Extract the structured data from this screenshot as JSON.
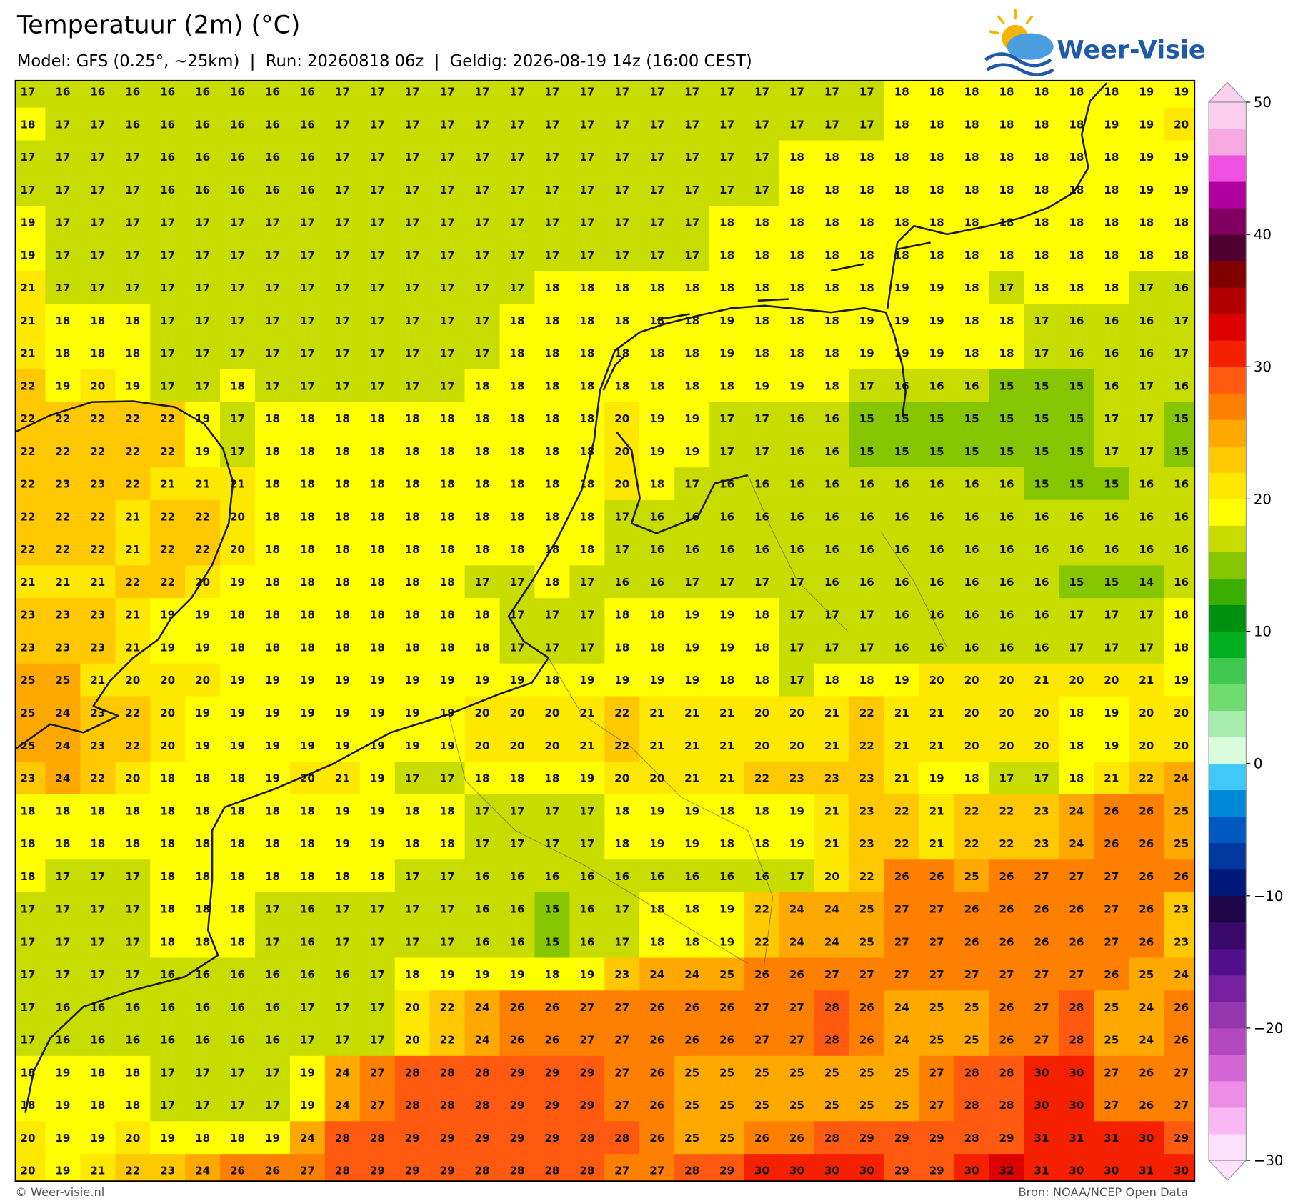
{
  "title": "Temperatuur (2m) (°C)",
  "subtitle": "Model: GFS (0.25°, ~25km)  |  Run: 20260818 06z  |  Geldig: 2026-08-19 14z (16:00 CEST)",
  "logo": "Weer-Visie",
  "footer_left": "© Weer-visie.nl",
  "footer_right": "Bron: NOAA/NCEP Open Data",
  "chart_data": {
    "type": "heatmap",
    "values": [
      [
        17,
        16,
        16,
        16,
        16,
        16,
        16,
        16,
        16,
        17,
        17,
        17,
        17,
        17,
        17,
        17,
        17,
        17,
        17,
        17,
        17,
        17,
        17,
        17,
        17,
        18,
        18,
        18,
        18,
        18,
        18,
        18,
        19,
        19
      ],
      [
        18,
        17,
        17,
        16,
        16,
        16,
        16,
        16,
        16,
        17,
        17,
        17,
        17,
        17,
        17,
        17,
        17,
        17,
        17,
        17,
        17,
        17,
        17,
        17,
        17,
        18,
        18,
        18,
        18,
        18,
        18,
        19,
        19,
        20
      ],
      [
        17,
        17,
        17,
        17,
        16,
        16,
        16,
        16,
        16,
        17,
        17,
        17,
        17,
        17,
        17,
        17,
        17,
        17,
        17,
        17,
        17,
        17,
        18,
        18,
        18,
        18,
        18,
        18,
        18,
        18,
        18,
        18,
        19,
        19
      ],
      [
        17,
        17,
        17,
        17,
        16,
        16,
        16,
        16,
        16,
        17,
        17,
        17,
        17,
        17,
        17,
        17,
        17,
        17,
        17,
        17,
        17,
        17,
        18,
        18,
        18,
        18,
        18,
        18,
        18,
        18,
        18,
        18,
        19,
        19
      ],
      [
        19,
        17,
        17,
        17,
        17,
        17,
        17,
        17,
        17,
        17,
        17,
        17,
        17,
        17,
        17,
        17,
        17,
        17,
        17,
        17,
        18,
        18,
        18,
        18,
        18,
        18,
        18,
        18,
        18,
        18,
        18,
        18,
        18,
        18
      ],
      [
        19,
        17,
        17,
        17,
        17,
        17,
        17,
        17,
        17,
        17,
        17,
        17,
        17,
        17,
        17,
        17,
        17,
        17,
        17,
        17,
        18,
        18,
        18,
        18,
        18,
        18,
        18,
        18,
        18,
        18,
        18,
        18,
        18,
        18
      ],
      [
        21,
        17,
        17,
        17,
        17,
        17,
        17,
        17,
        17,
        17,
        17,
        17,
        17,
        17,
        17,
        18,
        18,
        18,
        18,
        18,
        18,
        18,
        18,
        18,
        18,
        19,
        19,
        18,
        17,
        18,
        18,
        18,
        17,
        16
      ],
      [
        21,
        18,
        18,
        18,
        17,
        17,
        17,
        17,
        17,
        17,
        17,
        17,
        17,
        17,
        18,
        18,
        18,
        18,
        18,
        18,
        19,
        18,
        18,
        18,
        19,
        19,
        19,
        18,
        18,
        17,
        16,
        16,
        16,
        17
      ],
      [
        21,
        18,
        18,
        18,
        17,
        17,
        17,
        17,
        17,
        17,
        17,
        17,
        17,
        17,
        18,
        18,
        18,
        18,
        18,
        18,
        19,
        18,
        18,
        18,
        19,
        19,
        19,
        18,
        18,
        17,
        16,
        16,
        16,
        17
      ],
      [
        22,
        19,
        20,
        19,
        17,
        17,
        18,
        17,
        17,
        17,
        17,
        17,
        17,
        18,
        18,
        18,
        18,
        18,
        18,
        18,
        18,
        19,
        19,
        18,
        17,
        16,
        16,
        16,
        15,
        15,
        15,
        16,
        17,
        16
      ],
      [
        22,
        22,
        22,
        22,
        22,
        19,
        17,
        18,
        18,
        18,
        18,
        18,
        18,
        18,
        18,
        18,
        18,
        20,
        19,
        19,
        17,
        17,
        16,
        16,
        15,
        15,
        15,
        15,
        15,
        15,
        15,
        17,
        17,
        15
      ],
      [
        22,
        22,
        22,
        22,
        22,
        19,
        17,
        18,
        18,
        18,
        18,
        18,
        18,
        18,
        18,
        18,
        18,
        20,
        19,
        19,
        17,
        17,
        16,
        16,
        15,
        15,
        15,
        15,
        15,
        15,
        15,
        17,
        17,
        15
      ],
      [
        22,
        23,
        23,
        22,
        21,
        21,
        21,
        18,
        18,
        18,
        18,
        18,
        18,
        18,
        18,
        18,
        18,
        20,
        18,
        17,
        16,
        16,
        16,
        16,
        16,
        16,
        16,
        16,
        16,
        15,
        15,
        15,
        16,
        16
      ],
      [
        22,
        22,
        22,
        21,
        22,
        22,
        20,
        18,
        18,
        18,
        18,
        18,
        18,
        18,
        18,
        18,
        18,
        17,
        16,
        16,
        16,
        16,
        16,
        16,
        16,
        16,
        16,
        16,
        16,
        16,
        16,
        16,
        16,
        16
      ],
      [
        22,
        22,
        22,
        21,
        22,
        22,
        20,
        18,
        18,
        18,
        18,
        18,
        18,
        18,
        18,
        18,
        18,
        17,
        16,
        16,
        16,
        16,
        16,
        16,
        16,
        16,
        16,
        16,
        16,
        16,
        16,
        16,
        16,
        16
      ],
      [
        21,
        21,
        21,
        22,
        22,
        20,
        19,
        18,
        18,
        18,
        18,
        18,
        18,
        17,
        17,
        18,
        17,
        16,
        16,
        17,
        17,
        17,
        17,
        16,
        16,
        16,
        16,
        16,
        16,
        16,
        15,
        15,
        14,
        16
      ],
      [
        23,
        23,
        23,
        21,
        19,
        19,
        18,
        18,
        18,
        18,
        18,
        18,
        18,
        18,
        17,
        17,
        17,
        18,
        18,
        19,
        19,
        18,
        17,
        17,
        17,
        16,
        16,
        16,
        16,
        16,
        17,
        17,
        17,
        18
      ],
      [
        23,
        23,
        23,
        21,
        19,
        19,
        18,
        18,
        18,
        18,
        18,
        18,
        18,
        18,
        17,
        17,
        17,
        18,
        18,
        19,
        19,
        18,
        17,
        17,
        17,
        16,
        16,
        16,
        16,
        16,
        17,
        17,
        17,
        18
      ],
      [
        25,
        25,
        21,
        20,
        20,
        20,
        19,
        19,
        19,
        19,
        19,
        19,
        19,
        19,
        19,
        18,
        19,
        19,
        19,
        19,
        18,
        18,
        17,
        18,
        18,
        19,
        20,
        20,
        20,
        21,
        20,
        20,
        21,
        19
      ],
      [
        25,
        24,
        23,
        22,
        20,
        19,
        19,
        19,
        19,
        19,
        19,
        19,
        19,
        20,
        20,
        20,
        21,
        22,
        21,
        21,
        21,
        20,
        20,
        21,
        22,
        21,
        21,
        20,
        20,
        20,
        18,
        19,
        20,
        20
      ],
      [
        25,
        24,
        23,
        22,
        20,
        19,
        19,
        19,
        19,
        19,
        19,
        19,
        19,
        20,
        20,
        20,
        21,
        22,
        21,
        21,
        21,
        20,
        20,
        21,
        22,
        21,
        21,
        20,
        20,
        20,
        18,
        19,
        20,
        20
      ],
      [
        23,
        24,
        22,
        20,
        18,
        18,
        18,
        19,
        20,
        21,
        19,
        17,
        17,
        18,
        18,
        18,
        19,
        20,
        20,
        21,
        21,
        22,
        23,
        23,
        23,
        21,
        19,
        18,
        17,
        17,
        18,
        21,
        22,
        24
      ],
      [
        18,
        18,
        18,
        18,
        18,
        18,
        18,
        18,
        18,
        19,
        19,
        18,
        18,
        17,
        17,
        17,
        17,
        18,
        19,
        19,
        18,
        18,
        19,
        21,
        23,
        22,
        21,
        22,
        22,
        23,
        24,
        26,
        26,
        25
      ],
      [
        18,
        18,
        18,
        18,
        18,
        18,
        18,
        18,
        18,
        19,
        19,
        18,
        18,
        17,
        17,
        17,
        17,
        18,
        19,
        19,
        18,
        18,
        19,
        21,
        23,
        22,
        21,
        22,
        22,
        23,
        24,
        26,
        26,
        25
      ],
      [
        18,
        17,
        17,
        17,
        18,
        18,
        18,
        18,
        18,
        18,
        18,
        17,
        17,
        16,
        16,
        16,
        16,
        16,
        16,
        16,
        16,
        16,
        17,
        20,
        22,
        26,
        26,
        25,
        26,
        27,
        27,
        27,
        26,
        26
      ],
      [
        17,
        17,
        17,
        17,
        18,
        18,
        18,
        17,
        16,
        17,
        17,
        17,
        17,
        16,
        16,
        15,
        16,
        17,
        18,
        18,
        19,
        22,
        24,
        24,
        25,
        27,
        27,
        26,
        26,
        26,
        26,
        27,
        26,
        23
      ],
      [
        17,
        17,
        17,
        17,
        18,
        18,
        18,
        17,
        16,
        17,
        17,
        17,
        17,
        16,
        16,
        15,
        16,
        17,
        18,
        18,
        19,
        22,
        24,
        24,
        25,
        27,
        27,
        26,
        26,
        26,
        26,
        27,
        26,
        23
      ],
      [
        17,
        17,
        17,
        17,
        16,
        16,
        16,
        16,
        16,
        16,
        17,
        18,
        19,
        19,
        19,
        18,
        19,
        23,
        24,
        24,
        25,
        26,
        26,
        27,
        27,
        27,
        27,
        27,
        27,
        27,
        27,
        26,
        25,
        24
      ],
      [
        17,
        16,
        16,
        16,
        16,
        16,
        16,
        16,
        17,
        17,
        17,
        20,
        22,
        24,
        26,
        26,
        27,
        27,
        26,
        26,
        26,
        27,
        27,
        28,
        26,
        24,
        25,
        25,
        26,
        27,
        28,
        25,
        24,
        26
      ],
      [
        17,
        16,
        16,
        16,
        16,
        16,
        16,
        16,
        17,
        17,
        17,
        20,
        22,
        24,
        26,
        26,
        27,
        27,
        26,
        26,
        26,
        27,
        27,
        28,
        26,
        24,
        25,
        25,
        26,
        27,
        28,
        25,
        24,
        26
      ],
      [
        18,
        19,
        18,
        18,
        17,
        17,
        17,
        17,
        19,
        24,
        27,
        28,
        28,
        28,
        29,
        29,
        29,
        27,
        26,
        25,
        25,
        25,
        25,
        25,
        25,
        25,
        27,
        28,
        28,
        30,
        30,
        27,
        26,
        27
      ],
      [
        18,
        19,
        18,
        18,
        17,
        17,
        17,
        17,
        19,
        24,
        27,
        28,
        28,
        28,
        29,
        29,
        29,
        27,
        26,
        25,
        25,
        25,
        25,
        25,
        25,
        25,
        27,
        28,
        28,
        30,
        30,
        27,
        26,
        27
      ],
      [
        20,
        19,
        19,
        20,
        19,
        18,
        18,
        19,
        24,
        28,
        28,
        29,
        29,
        29,
        29,
        29,
        28,
        28,
        26,
        25,
        25,
        26,
        26,
        28,
        29,
        29,
        29,
        28,
        29,
        31,
        31,
        31,
        30,
        29
      ],
      [
        20,
        19,
        21,
        22,
        23,
        24,
        26,
        26,
        27,
        28,
        29,
        29,
        29,
        28,
        28,
        28,
        28,
        27,
        27,
        28,
        29,
        30,
        30,
        30,
        30,
        29,
        29,
        30,
        32,
        31,
        30,
        30,
        31,
        30
      ]
    ],
    "colorbar": {
      "lim": [
        -30,
        50
      ],
      "ticks": [
        {
          "value": -30,
          "label": "−30"
        },
        {
          "value": -20,
          "label": "−20"
        },
        {
          "value": -10,
          "label": "−10"
        },
        0,
        10,
        20,
        30,
        40,
        50
      ],
      "colors": [
        "#fde0fb",
        "#f9b8f3",
        "#ec8ee6",
        "#d466d6",
        "#b448c0",
        "#9436ae",
        "#7420a0",
        "#52108c",
        "#3a0a6a",
        "#1e0648",
        "#001878",
        "#0038a0",
        "#0058c0",
        "#0088d8",
        "#40c8f8",
        "#d8fcdc",
        "#a8ecb0",
        "#70dc70",
        "#40c850",
        "#00b020",
        "#009010",
        "#3cae00",
        "#86c600",
        "#c8dc00",
        "#ffff00",
        "#ffe800",
        "#ffc800",
        "#ffa800",
        "#ff8000",
        "#ff5a10",
        "#f42000",
        "#dc0000",
        "#b00000",
        "#800000",
        "#500030",
        "#800060",
        "#b000a0",
        "#f050e0",
        "#f7a8e0",
        "#fad0ee"
      ]
    }
  }
}
